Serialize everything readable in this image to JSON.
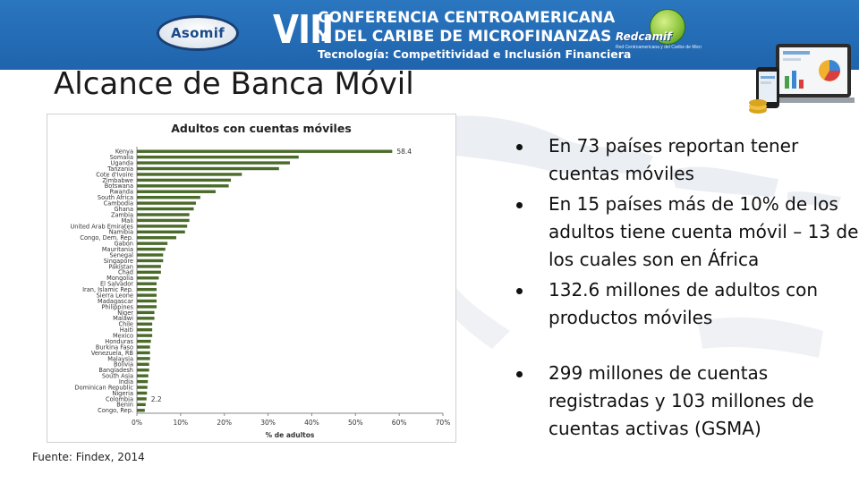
{
  "banner": {
    "logo_text": "Asomif",
    "roman": "VIII",
    "line1": "CONFERENCIA CENTROAMERICANA",
    "line2": "Y DEL CARIBE DE MICROFINANZAS",
    "line3": "Tecnología: Competitividad e Inclusión Financiera",
    "partner_text": "Redcamif",
    "partner_tagline": "Red Centroamericana y del Caribe de Microfinanzas",
    "color": "#1f64ad"
  },
  "slide": {
    "title": "Alcance de Banca Móvil",
    "source": "Fuente: Findex, 2014",
    "bullets": [
      "En 73 países reportan tener cuentas móviles",
      "En 15 países más de 10% de los adultos tiene cuenta móvil – 13 de los cuales son en África",
      "132.6 millones de adultos con productos móviles",
      "299 millones de cuentas registradas y 103 millones de cuentas activas (GSMA)"
    ]
  },
  "chart_data": {
    "type": "bar",
    "orientation": "horizontal",
    "title": "Adultos con cuentas móviles",
    "xlabel": "% de adultos",
    "ylabel": "",
    "xlim": [
      0,
      70
    ],
    "xticks": [
      "0%",
      "10%",
      "20%",
      "30%",
      "40%",
      "50%",
      "60%",
      "70%"
    ],
    "bar_color": "#4a6b2a",
    "grid": false,
    "categories": [
      "Kenya",
      "Somalia",
      "Uganda",
      "Tanzania",
      "Cote d'Ivoire",
      "Zimbabwe",
      "Botswana",
      "Rwanda",
      "South Africa",
      "Cambodia",
      "Ghana",
      "Zambia",
      "Mali",
      "United Arab Emirates",
      "Namibia",
      "Congo, Dem. Rep.",
      "Gabon",
      "Mauritania",
      "Senegal",
      "Singapore",
      "Pakistan",
      "Chad",
      "Mongolia",
      "El Salvador",
      "Iran, Islamic Rep.",
      "Sierra Leone",
      "Madagascar",
      "Philippines",
      "Niger",
      "Malawi",
      "Chile",
      "Haiti",
      "Mexico",
      "Honduras",
      "Burkina Faso",
      "Venezuela, RB",
      "Malaysia",
      "Bolivia",
      "Bangladesh",
      "South Asia",
      "India",
      "Dominican Republic",
      "Nigeria",
      "Colombia",
      "Benin",
      "Congo, Rep."
    ],
    "values": [
      58.4,
      37,
      35,
      32.5,
      24,
      21.5,
      21,
      18,
      14.5,
      13.5,
      13,
      12,
      12,
      11.5,
      11,
      9,
      7,
      6.5,
      6,
      6,
      5.5,
      5.5,
      5,
      4.5,
      4.5,
      4.5,
      4.5,
      4.5,
      4,
      4,
      3.5,
      3.5,
      3.5,
      3.2,
      3,
      3,
      3,
      2.8,
      2.8,
      2.6,
      2.5,
      2.4,
      2.3,
      2.2,
      2.0,
      1.8
    ],
    "data_labels": [
      {
        "category": "Kenya",
        "text": "58.4"
      },
      {
        "category": "Colombia",
        "text": "2.2"
      }
    ]
  }
}
